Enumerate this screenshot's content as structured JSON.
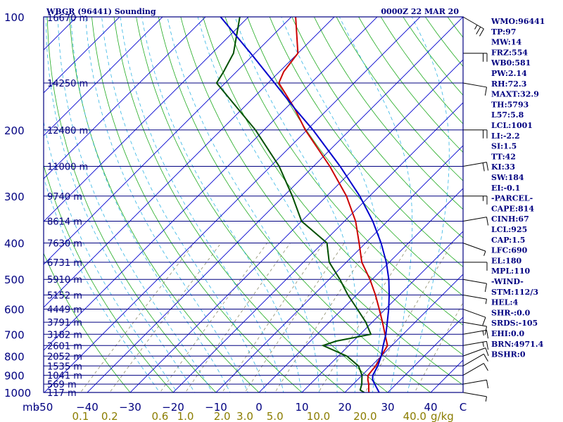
{
  "header": {
    "station_title": "WBGR (96441) Sounding",
    "valid_time": "0000Z 22 MAR 20"
  },
  "colors": {
    "frame": "#000080",
    "isobar": "#000080",
    "isotherm": "#0000cd",
    "dry_adiabat": "#1faa1f",
    "moist_adiabat": "#33b5e5",
    "mixing_ratio": "#8b8b6b",
    "temperature": "#cc0000",
    "dewpoint": "#005000",
    "parcel": "#0000cc",
    "mixing_label": "#8b7d00"
  },
  "chart_data": {
    "type": "line",
    "title": "WBGR (96441) Sounding",
    "xlabel": "",
    "ylabel": "mb",
    "pressure_levels": [
      {
        "p": 100,
        "label": "100",
        "height": "16670 m"
      },
      {
        "p": 150,
        "label": "",
        "height": "14250 m"
      },
      {
        "p": 200,
        "label": "200",
        "height": "12480 m"
      },
      {
        "p": 250,
        "label": "",
        "height": "11000 m"
      },
      {
        "p": 300,
        "label": "300",
        "height": "9740 m"
      },
      {
        "p": 350,
        "label": "",
        "height": "8614 m"
      },
      {
        "p": 400,
        "label": "400",
        "height": "7630 m"
      },
      {
        "p": 450,
        "label": "",
        "height": "6731 m"
      },
      {
        "p": 500,
        "label": "500",
        "height": "5910 m"
      },
      {
        "p": 550,
        "label": "",
        "height": "5152 m"
      },
      {
        "p": 600,
        "label": "600",
        "height": "4449 m"
      },
      {
        "p": 650,
        "label": "",
        "height": "3791 m"
      },
      {
        "p": 700,
        "label": "700",
        "height": "3182 m"
      },
      {
        "p": 750,
        "label": "",
        "height": "2601 m"
      },
      {
        "p": 800,
        "label": "800",
        "height": "2052 m"
      },
      {
        "p": 850,
        "label": "",
        "height": "1535 m"
      },
      {
        "p": 900,
        "label": "900",
        "height": "1041 m"
      },
      {
        "p": 950,
        "label": "",
        "height": "569 m"
      },
      {
        "p": 1000,
        "label": "1000",
        "height": "117 m"
      }
    ],
    "y_unit_label": "mb",
    "temperature_ticks": [
      -50,
      -40,
      -30,
      -20,
      -10,
      0,
      10,
      20,
      30,
      40
    ],
    "temperature_tick_labels": [
      "-50",
      "−40",
      "−30",
      "−20",
      "−10",
      "0",
      "10",
      "20",
      "30",
      "40"
    ],
    "temperature_end_label": "C",
    "mixing_ratio_labels": [
      "0.1",
      "0.2",
      "0.6",
      "1.0",
      "2.0",
      "3.0",
      "5.0",
      "10.0",
      "20.0",
      "40.0"
    ],
    "mixing_ratio_unit": "g/kg",
    "xlim": [
      -50,
      50
    ],
    "ylim": [
      1000,
      100
    ],
    "grid": true,
    "series": [
      {
        "key": "temperature",
        "points": [
          [
            1000,
            25.6
          ],
          [
            985,
            25.0
          ],
          [
            950,
            23.6
          ],
          [
            925,
            22.4
          ],
          [
            900,
            21.4
          ],
          [
            850,
            21.0
          ],
          [
            800,
            20.0
          ],
          [
            750,
            19.0
          ],
          [
            700,
            15.8
          ],
          [
            650,
            12.4
          ],
          [
            600,
            8.6
          ],
          [
            550,
            4.4
          ],
          [
            500,
            -0.5
          ],
          [
            450,
            -6.4
          ],
          [
            400,
            -11.5
          ],
          [
            350,
            -17.4
          ],
          [
            300,
            -25.4
          ],
          [
            250,
            -36.2
          ],
          [
            200,
            -50.4
          ],
          [
            175,
            -58.0
          ],
          [
            150,
            -67.5
          ],
          [
            140,
            -69.0
          ],
          [
            125,
            -70.0
          ],
          [
            100,
            -79.0
          ]
        ]
      },
      {
        "key": "dewpoint",
        "points": [
          [
            1000,
            24.5
          ],
          [
            985,
            23.0
          ],
          [
            950,
            22.0
          ],
          [
            925,
            21.0
          ],
          [
            900,
            20.0
          ],
          [
            850,
            17.0
          ],
          [
            800,
            12.0
          ],
          [
            750,
            4.0
          ],
          [
            730,
            6.0
          ],
          [
            700,
            12.5
          ],
          [
            650,
            8.5
          ],
          [
            600,
            3.5
          ],
          [
            550,
            -2.0
          ],
          [
            500,
            -7.5
          ],
          [
            450,
            -14.0
          ],
          [
            400,
            -19.0
          ],
          [
            350,
            -30.0
          ],
          [
            300,
            -38.0
          ],
          [
            250,
            -48.0
          ],
          [
            200,
            -62.0
          ],
          [
            150,
            -82.0
          ],
          [
            140,
            -83.0
          ],
          [
            125,
            -85.0
          ],
          [
            100,
            -92.0
          ]
        ]
      },
      {
        "key": "parcel",
        "points": [
          [
            1000,
            28.0
          ],
          [
            950,
            25.0
          ],
          [
            925,
            23.5
          ],
          [
            900,
            22.5
          ],
          [
            850,
            21.5
          ],
          [
            800,
            20.0
          ],
          [
            750,
            18.0
          ],
          [
            700,
            16.0
          ],
          [
            650,
            13.5
          ],
          [
            600,
            10.8
          ],
          [
            550,
            7.6
          ],
          [
            500,
            3.9
          ],
          [
            450,
            -0.7
          ],
          [
            400,
            -6.4
          ],
          [
            350,
            -13.4
          ],
          [
            300,
            -22.3
          ],
          [
            250,
            -33.8
          ],
          [
            200,
            -48.6
          ],
          [
            175,
            -58.0
          ],
          [
            150,
            -68.5
          ],
          [
            125,
            -81.0
          ],
          [
            100,
            -96.5
          ]
        ]
      }
    ],
    "winds": [
      {
        "p": 1000,
        "dir": 100,
        "spd": 5
      },
      {
        "p": 950,
        "dir": 80,
        "spd": 10
      },
      {
        "p": 900,
        "dir": 60,
        "spd": 10
      },
      {
        "p": 850,
        "dir": 60,
        "spd": 10
      },
      {
        "p": 800,
        "dir": 70,
        "spd": 10
      },
      {
        "p": 750,
        "dir": 80,
        "spd": 15
      },
      {
        "p": 700,
        "dir": 80,
        "spd": 15
      },
      {
        "p": 650,
        "dir": 100,
        "spd": 10
      },
      {
        "p": 600,
        "dir": 110,
        "spd": 10
      },
      {
        "p": 550,
        "dir": 100,
        "spd": 5
      },
      {
        "p": 500,
        "dir": 100,
        "spd": 10
      },
      {
        "p": 450,
        "dir": 90,
        "spd": 10
      },
      {
        "p": 400,
        "dir": 110,
        "spd": 5
      },
      {
        "p": 350,
        "dir": 80,
        "spd": 10
      },
      {
        "p": 300,
        "dir": 90,
        "spd": 15
      },
      {
        "p": 250,
        "dir": 80,
        "spd": 20
      },
      {
        "p": 200,
        "dir": 90,
        "spd": 20
      },
      {
        "p": 150,
        "dir": 100,
        "spd": 10
      },
      {
        "p": 125,
        "dir": 90,
        "spd": 20
      },
      {
        "p": 100,
        "dir": 120,
        "spd": 25
      }
    ]
  },
  "indices": [
    "WMO:96441",
    "TP:97",
    "MW:14",
    "FRZ:554",
    "WB0:581",
    "PW:2.14",
    "RH:72.3",
    "MAXT:32.9",
    "TH:5793",
    "L57:5.8",
    "LCL:1001",
    "LI:-2.2",
    "SI:1.5",
    "TT:42",
    "KI:33",
    "SW:184",
    "EI:-0.1",
    "-PARCEL-",
    "CAPE:814",
    "CINH:67",
    "LCL:925",
    "CAP:1.5",
    "LFC:690",
    "EL:180",
    "MPL:110",
    "-WIND-",
    "STM:112/3",
    "HEL:4",
    "SHR-:0.0",
    "SRDS:-105",
    "EHI:0.0",
    "BRN:4971.4",
    "BSHR:0"
  ]
}
